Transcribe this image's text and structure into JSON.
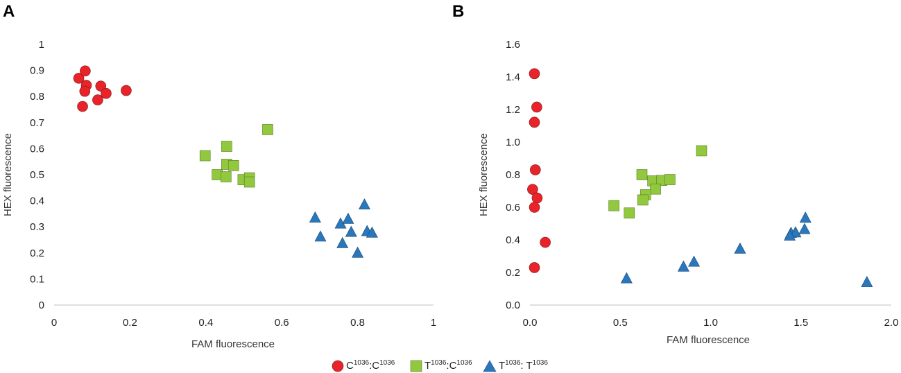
{
  "chart_data": [
    {
      "panel": "A",
      "type": "scatter",
      "xlabel": "FAM fluorescence",
      "ylabel": "HEX fluorescence",
      "xlim": [
        0,
        1
      ],
      "ylim": [
        0,
        1
      ],
      "xticks": [
        0,
        0.2,
        0.4,
        0.6,
        0.8,
        1
      ],
      "yticks": [
        0,
        0.1,
        0.2,
        0.3,
        0.4,
        0.5,
        0.6,
        0.7,
        0.8,
        0.9,
        1
      ],
      "xtick_labels": [
        "0",
        "0.2",
        "0.4",
        "0.6",
        "0.8",
        "1"
      ],
      "ytick_labels": [
        "0",
        "0.1",
        "0.2",
        "0.3",
        "0.4",
        "0.5",
        "0.6",
        "0.7",
        "0.8",
        "0.9",
        "1"
      ],
      "series": [
        {
          "name": "C1036:C1036",
          "marker": "circle",
          "color": "#e8232a",
          "points": [
            [
              0.065,
              0.87
            ],
            [
              0.082,
              0.898
            ],
            [
              0.085,
              0.843
            ],
            [
              0.081,
              0.82
            ],
            [
              0.123,
              0.84
            ],
            [
              0.137,
              0.812
            ],
            [
              0.115,
              0.787
            ],
            [
              0.075,
              0.762
            ],
            [
              0.19,
              0.823
            ]
          ]
        },
        {
          "name": "T1036:C1036",
          "marker": "square",
          "color": "#92c83e",
          "points": [
            [
              0.398,
              0.573
            ],
            [
              0.455,
              0.609
            ],
            [
              0.563,
              0.673
            ],
            [
              0.455,
              0.54
            ],
            [
              0.473,
              0.535
            ],
            [
              0.43,
              0.5
            ],
            [
              0.453,
              0.492
            ],
            [
              0.498,
              0.481
            ],
            [
              0.515,
              0.488
            ],
            [
              0.515,
              0.472
            ]
          ]
        },
        {
          "name": "T1036: T1036",
          "marker": "triangle",
          "color": "#2a77bb",
          "points": [
            [
              0.688,
              0.335
            ],
            [
              0.702,
              0.262
            ],
            [
              0.755,
              0.312
            ],
            [
              0.775,
              0.33
            ],
            [
              0.818,
              0.385
            ],
            [
              0.76,
              0.237
            ],
            [
              0.783,
              0.28
            ],
            [
              0.825,
              0.283
            ],
            [
              0.838,
              0.277
            ],
            [
              0.8,
              0.2
            ]
          ]
        }
      ]
    },
    {
      "panel": "B",
      "type": "scatter",
      "xlabel": "FAM fluorescence",
      "ylabel": "HEX fluorescence",
      "xlim": [
        0,
        2
      ],
      "ylim": [
        0,
        1.6
      ],
      "xticks": [
        0,
        0.5,
        1,
        1.5,
        2
      ],
      "yticks": [
        0,
        0.2,
        0.4,
        0.6,
        0.8,
        1.0,
        1.2,
        1.4,
        1.6
      ],
      "xtick_labels": [
        "0.0",
        "0.5",
        "1.0",
        "1.5",
        "2.0"
      ],
      "ytick_labels": [
        "0.0",
        "0.2",
        "0.4",
        "0.6",
        "0.8",
        "1.0",
        "1.2",
        "1.4",
        "1.6"
      ],
      "series": [
        {
          "name": "C1036:C1036",
          "marker": "circle",
          "color": "#e8232a",
          "points": [
            [
              0.025,
              1.42
            ],
            [
              0.038,
              1.215
            ],
            [
              0.025,
              1.122
            ],
            [
              0.03,
              0.83
            ],
            [
              0.015,
              0.71
            ],
            [
              0.04,
              0.657
            ],
            [
              0.025,
              0.6
            ],
            [
              0.085,
              0.385
            ],
            [
              0.025,
              0.23
            ]
          ]
        },
        {
          "name": "T1036:C1036",
          "marker": "square",
          "color": "#92c83e",
          "points": [
            [
              0.95,
              0.947
            ],
            [
              0.62,
              0.8
            ],
            [
              0.68,
              0.762
            ],
            [
              0.73,
              0.765
            ],
            [
              0.775,
              0.77
            ],
            [
              0.695,
              0.712
            ],
            [
              0.64,
              0.677
            ],
            [
              0.625,
              0.645
            ],
            [
              0.465,
              0.61
            ],
            [
              0.55,
              0.565
            ]
          ]
        },
        {
          "name": "T1036: T1036",
          "marker": "triangle",
          "color": "#2a77bb",
          "points": [
            [
              1.525,
              0.535
            ],
            [
              1.52,
              0.465
            ],
            [
              1.445,
              0.442
            ],
            [
              1.47,
              0.445
            ],
            [
              1.438,
              0.425
            ],
            [
              1.163,
              0.345
            ],
            [
              0.908,
              0.265
            ],
            [
              0.85,
              0.235
            ],
            [
              0.535,
              0.163
            ],
            [
              1.865,
              0.14
            ]
          ]
        }
      ]
    }
  ],
  "legend": [
    {
      "base1": "C",
      "sup1": "1036",
      "mid": ":C",
      "sup2": "1036",
      "marker": "circle",
      "color": "#e8232a"
    },
    {
      "base1": "T",
      "sup1": "1036",
      "mid": ":C",
      "sup2": "1036",
      "marker": "square",
      "color": "#92c83e"
    },
    {
      "base1": "T",
      "sup1": "1036",
      "mid": ": T",
      "sup2": "1036",
      "marker": "triangle",
      "color": "#2a77bb"
    }
  ]
}
